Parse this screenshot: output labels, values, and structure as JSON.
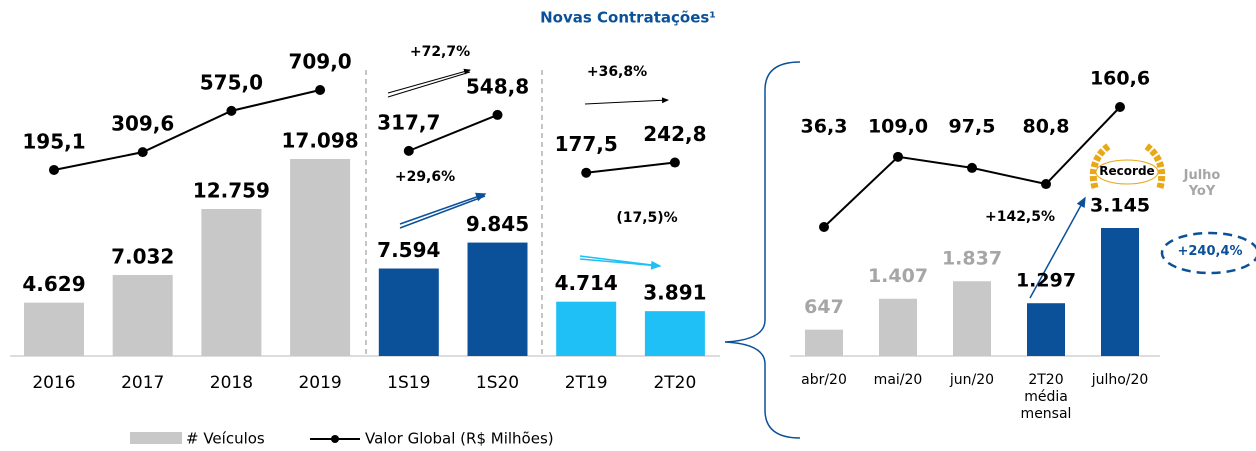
{
  "title": "Novas Contratações¹",
  "legend": {
    "bars": "# Veículos",
    "line": "Valor Global (R$ Milhões)"
  },
  "chart_data": [
    {
      "type": "bar-line",
      "groups": [
        {
          "categories": [
            "2016",
            "2017",
            "2018",
            "2019"
          ],
          "bars": {
            "color": "#c8c8c8",
            "values": [
              4629,
              7032,
              12759,
              17098
            ],
            "value_labels": [
              "4.629",
              "7.032",
              "12.759",
              "17.098"
            ]
          },
          "line": {
            "color": "#000000",
            "values": [
              195.1,
              309.6,
              575.0,
              709.0
            ],
            "value_labels": [
              "195,1",
              "309,6",
              "575,0",
              "709,0"
            ]
          },
          "annotations": []
        },
        {
          "categories": [
            "1S19",
            "1S20"
          ],
          "bars": {
            "color": "#0b5199",
            "values": [
              7594,
              9845
            ],
            "value_labels": [
              "7.594",
              "9.845"
            ]
          },
          "line": {
            "color": "#000000",
            "values": [
              317.7,
              548.8
            ],
            "value_labels": [
              "317,7",
              "548,8"
            ]
          },
          "annotations": [
            "+72,7%",
            "+29,6%"
          ]
        },
        {
          "categories": [
            "2T19",
            "2T20"
          ],
          "bars": {
            "color": "#1ec0f5",
            "values": [
              4714,
              3891
            ],
            "value_labels": [
              "4.714",
              "3.891"
            ]
          },
          "line": {
            "color": "#000000",
            "values": [
              177.5,
              242.8
            ],
            "value_labels": [
              "177,5",
              "242,8"
            ]
          },
          "annotations": [
            "+36,8%",
            "(17,5)%"
          ]
        }
      ]
    },
    {
      "type": "bar-line",
      "categories": [
        "abr/20",
        "mai/20",
        "jun/20",
        "2T20\nmédia\nmensal",
        "julho/20"
      ],
      "bars": {
        "colors": [
          "#c8c8c8",
          "#c8c8c8",
          "#c8c8c8",
          "#0b5199",
          "#0b5199"
        ],
        "value_label_colors": [
          "#a6a6a6",
          "#a6a6a6",
          "#a6a6a6",
          "#000000",
          "#000000"
        ],
        "values": [
          647,
          1407,
          1837,
          1297,
          3145
        ],
        "value_labels": [
          "647",
          "1.407",
          "1.837",
          "1.297",
          "3.145"
        ]
      },
      "line": {
        "color": "#000000",
        "values": [
          36.3,
          109.0,
          97.5,
          80.8,
          160.6
        ],
        "value_labels": [
          "36,3",
          "109,0",
          "97,5",
          "80,8",
          "160,6"
        ]
      },
      "annotations": [
        "+142,5%",
        "Recorde",
        "Julho\nYoY",
        "+240,4%"
      ]
    }
  ]
}
